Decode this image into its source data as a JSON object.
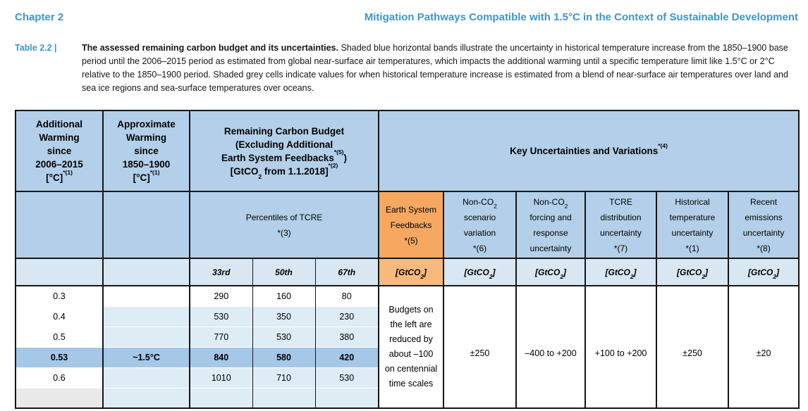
{
  "page_header": {
    "chapter": "Chapter 2",
    "title": "Mitigation Pathways Compatible with 1.5°C in the Context of Sustainable Development"
  },
  "caption": {
    "label": "Table 2.2 |",
    "lead": "The assessed remaining carbon budget and its uncertainties.",
    "body": " Shaded blue horizontal bands illustrate the uncertainty in historical temperature increase from the 1850–1900 base period until the 2006–2015 period as estimated from global near-surface air temperatures, which impacts the additional warming until a specific temperature limit like 1.5°C or 2°C relative to the 1850–1900 period. Shaded grey cells indicate values for when historical temperature increase is estimated from a blend of near-surface air temperatures over land and sea ice regions and sea-surface temperatures over oceans."
  },
  "colors": {
    "accent_blue_text": "#3d96cf",
    "header_blue": "#b3cfe9",
    "unit_row_blue": "#d8e7f2",
    "band_blue": "#ddecf5",
    "highlight_blue": "#a5c7e8",
    "orange_header": "#f6a860",
    "peach_cell": "#fbe5d3",
    "grey_cell": "#e9e9e9",
    "border": "#161616"
  },
  "table": {
    "header_row1": {
      "additional_warming": [
        {
          "t": "n",
          "v": "Additional"
        },
        {
          "t": "br"
        },
        {
          "t": "n",
          "v": "Warming"
        },
        {
          "t": "br"
        },
        {
          "t": "n",
          "v": "since"
        },
        {
          "t": "br"
        },
        {
          "t": "n",
          "v": "2006–2015"
        },
        {
          "t": "br"
        },
        {
          "t": "n",
          "v": "[°C]"
        },
        {
          "t": "sup",
          "v": "*(1)"
        }
      ],
      "approximate_warming": [
        {
          "t": "n",
          "v": "Approximate"
        },
        {
          "t": "br"
        },
        {
          "t": "n",
          "v": "Warming"
        },
        {
          "t": "br"
        },
        {
          "t": "n",
          "v": "since"
        },
        {
          "t": "br"
        },
        {
          "t": "n",
          "v": "1850–1900"
        },
        {
          "t": "br"
        },
        {
          "t": "n",
          "v": "[°C]"
        },
        {
          "t": "sup",
          "v": "*(1)"
        }
      ],
      "remaining_budget": [
        {
          "t": "n",
          "v": "Remaining Carbon Budget"
        },
        {
          "t": "br"
        },
        {
          "t": "n",
          "v": "(Excluding Additional"
        },
        {
          "t": "br"
        },
        {
          "t": "n",
          "v": "Earth System Feedbacks"
        },
        {
          "t": "sup",
          "v": "*(5)"
        },
        {
          "t": "n",
          "v": ")"
        },
        {
          "t": "br"
        },
        {
          "t": "n",
          "v": "[GtCO"
        },
        {
          "t": "sub",
          "v": "2"
        },
        {
          "t": "n",
          "v": " from 1.1.2018]"
        },
        {
          "t": "sup",
          "v": "*(2)"
        }
      ],
      "key_uncertainties": [
        {
          "t": "n",
          "v": "Key Uncertainties and Variations"
        },
        {
          "t": "sup",
          "v": "*(4)"
        }
      ]
    },
    "header_row2": {
      "percentiles": [
        {
          "t": "n",
          "v": "Percentiles of TCRE"
        },
        {
          "t": "br"
        },
        {
          "t": "n",
          "v": "*(3)"
        }
      ],
      "earth_system_feedbacks": [
        {
          "t": "n",
          "v": "Earth System Feedbacks"
        },
        {
          "t": "br"
        },
        {
          "t": "n",
          "v": "*(5)"
        }
      ],
      "non_co2_scenario": [
        {
          "t": "n",
          "v": "Non-CO"
        },
        {
          "t": "sub",
          "v": "2"
        },
        {
          "t": "n",
          "v": " scenario variation"
        },
        {
          "t": "br"
        },
        {
          "t": "n",
          "v": "*(6)"
        }
      ],
      "non_co2_forcing": [
        {
          "t": "n",
          "v": "Non-CO"
        },
        {
          "t": "sub",
          "v": "2"
        },
        {
          "t": "n",
          "v": " forcing and response uncertainty"
        }
      ],
      "tcre_distribution": [
        {
          "t": "n",
          "v": "TCRE distribution uncertainty"
        },
        {
          "t": "br"
        },
        {
          "t": "n",
          "v": "*(7)"
        }
      ],
      "historical_temperature": [
        {
          "t": "n",
          "v": "Historical temperature uncertainty"
        },
        {
          "t": "br"
        },
        {
          "t": "n",
          "v": "*(1)"
        }
      ],
      "recent_emissions": [
        {
          "t": "n",
          "v": "Recent emissions uncertainty"
        },
        {
          "t": "br"
        },
        {
          "t": "n",
          "v": "*(8)"
        }
      ]
    },
    "header_row3": {
      "p33": "33rd",
      "p50": "50th",
      "p67": "67th",
      "unit": [
        {
          "t": "n",
          "v": "[GtCO"
        },
        {
          "t": "sub",
          "v": "2"
        },
        {
          "t": "n",
          "v": "]"
        }
      ]
    },
    "rows": [
      {
        "additional_warming": "0.3",
        "approx_warming": "",
        "p33": "290",
        "p50": "160",
        "p67": "80"
      },
      {
        "additional_warming": "0.4",
        "approx_warming": "",
        "p33": "530",
        "p50": "350",
        "p67": "230"
      },
      {
        "additional_warming": "0.5",
        "approx_warming": "",
        "p33": "770",
        "p50": "530",
        "p67": "380"
      },
      {
        "additional_warming": "0.53",
        "approx_warming": "~1.5°C",
        "p33": "840",
        "p50": "580",
        "p67": "420"
      },
      {
        "additional_warming": "0.6",
        "approx_warming": "",
        "p33": "1010",
        "p50": "710",
        "p67": "530"
      },
      {
        "additional_warming": "",
        "approx_warming": "",
        "p33": "",
        "p50": "",
        "p67": ""
      }
    ],
    "merged": {
      "esf_note": "Budgets on the left are reduced by about –100 on centennial time scales",
      "non_co2_scenario_value": "±250",
      "non_co2_forcing_value": "–400 to +200",
      "tcre_value": "+100 to +200",
      "historical_value": "±250",
      "recent_value": "±20"
    }
  }
}
